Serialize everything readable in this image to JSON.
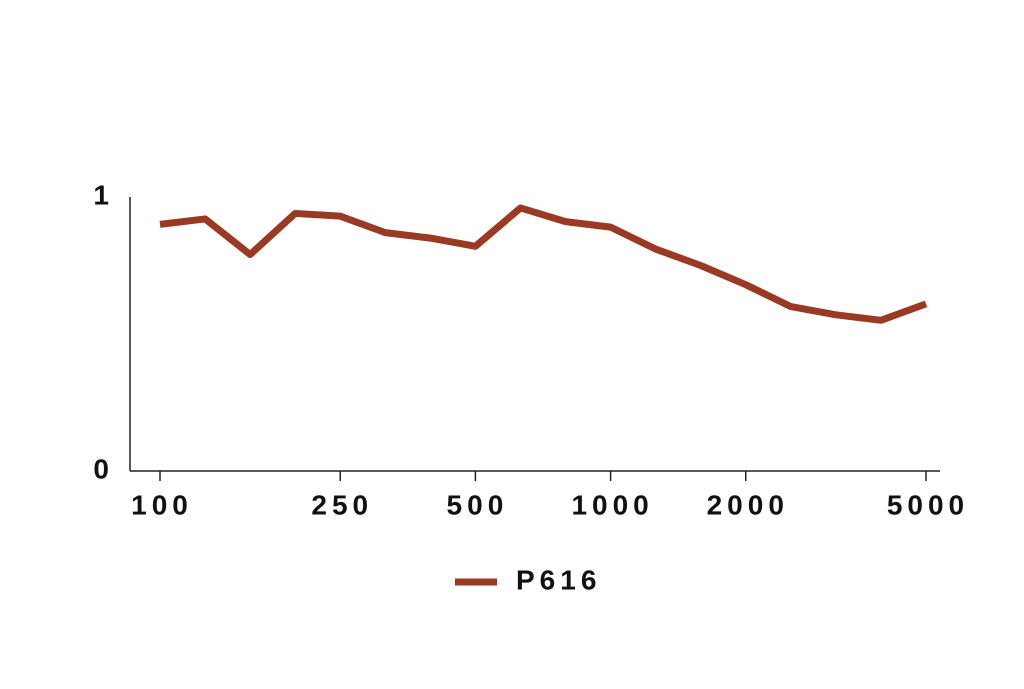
{
  "chart_data": {
    "type": "line",
    "categories": [
      "100",
      null,
      null,
      null,
      "250",
      null,
      null,
      "500",
      null,
      null,
      "1000",
      null,
      null,
      "2000",
      null,
      null,
      null,
      "5000"
    ],
    "series": [
      {
        "name": "P616",
        "color": "#9b3a23",
        "values": [
          0.9,
          0.92,
          0.79,
          0.94,
          0.93,
          0.87,
          0.85,
          0.82,
          0.96,
          0.91,
          0.89,
          0.81,
          0.75,
          0.68,
          0.6,
          0.57,
          0.55,
          0.61
        ]
      }
    ],
    "ylim": [
      0,
      1
    ],
    "yticks": [
      0,
      1
    ],
    "grid": false,
    "legend": "bottom"
  }
}
